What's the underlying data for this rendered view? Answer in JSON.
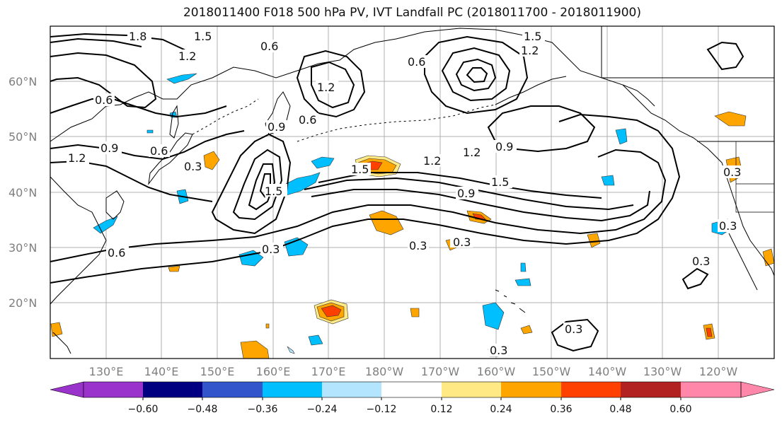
{
  "title": "2018011400 F018 500 hPa PV, IVT Landfall PC (2018011700 - 2018011900)",
  "map": {
    "lat_labels": [
      "60°N",
      "50°N",
      "40°N",
      "30°N",
      "20°N"
    ],
    "lon_labels": [
      "130°E",
      "140°E",
      "150°E",
      "160°E",
      "170°E",
      "180°W",
      "170°W",
      "160°W",
      "150°W",
      "140°W",
      "130°W",
      "120°W"
    ],
    "contour_labels": [
      "1.8",
      "1.5",
      "1.2",
      "0.6",
      "0.9",
      "0.6",
      "0.3",
      "1.2",
      "0.9",
      "0.6",
      "0.3",
      "1.5",
      "1.2",
      "1.5",
      "0.9",
      "0.9",
      "0.6",
      "0.3",
      "0.3",
      "0.3",
      "0.3",
      "0.3",
      "0.3",
      "1.2",
      "1.5",
      "0.6",
      "1.2",
      "0.3",
      "1.5",
      "1.2",
      "0.6"
    ]
  },
  "colorbar": {
    "ticks": [
      "−0.60",
      "−0.48",
      "−0.36",
      "−0.24",
      "−0.12",
      "0.12",
      "0.24",
      "0.36",
      "0.48",
      "0.60"
    ],
    "colors": [
      "#9933cc",
      "#000080",
      "#3355cc",
      "#00bfff",
      "#b3e5ff",
      "#ffffff",
      "#ffe985",
      "#ffa500",
      "#ff4000",
      "#b22222",
      "#ff88aa"
    ]
  },
  "colors": {
    "grid": "#b0b0b0",
    "contour": "#000000",
    "coast": "#000000"
  }
}
